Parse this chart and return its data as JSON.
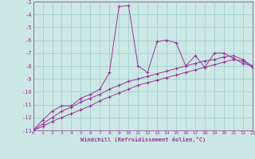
{
  "xlabel": "Windchill (Refroidissement éolien,°C)",
  "bg_color": "#cce8e4",
  "grid_color": "#99cccc",
  "line_color": "#993399",
  "xlim": [
    0,
    23
  ],
  "ylim": [
    -13,
    -3
  ],
  "xticks": [
    0,
    1,
    2,
    3,
    4,
    5,
    6,
    7,
    8,
    9,
    10,
    11,
    12,
    13,
    14,
    15,
    16,
    17,
    18,
    19,
    20,
    21,
    22,
    23
  ],
  "yticks": [
    -13,
    -12,
    -11,
    -10,
    -9,
    -8,
    -7,
    -6,
    -5,
    -4,
    -3
  ],
  "line1_x": [
    0,
    1,
    2,
    3,
    4,
    5,
    6,
    7,
    8,
    9,
    10,
    11,
    12,
    13,
    14,
    15,
    16,
    17,
    18,
    19,
    20,
    21,
    22,
    23
  ],
  "line1_y": [
    -13.0,
    -12.2,
    -11.5,
    -11.1,
    -11.1,
    -10.5,
    -10.2,
    -9.8,
    -8.5,
    -3.4,
    -3.3,
    -8.0,
    -8.5,
    -6.1,
    -6.0,
    -6.2,
    -8.0,
    -7.2,
    -8.1,
    -7.0,
    -7.0,
    -7.4,
    -7.8,
    -8.0
  ],
  "line2_x": [
    0,
    1,
    2,
    3,
    4,
    5,
    6,
    7,
    8,
    9,
    10,
    11,
    12,
    13,
    14,
    15,
    16,
    17,
    18,
    19,
    20,
    21,
    22,
    23
  ],
  "line2_y": [
    -13.0,
    -12.5,
    -12.0,
    -11.5,
    -11.2,
    -10.8,
    -10.5,
    -10.2,
    -9.8,
    -9.5,
    -9.2,
    -9.0,
    -8.8,
    -8.6,
    -8.4,
    -8.2,
    -8.0,
    -7.8,
    -7.6,
    -7.5,
    -7.3,
    -7.2,
    -7.5,
    -8.0
  ],
  "line3_x": [
    0,
    1,
    2,
    3,
    4,
    5,
    6,
    7,
    8,
    9,
    10,
    11,
    12,
    13,
    14,
    15,
    16,
    17,
    18,
    19,
    20,
    21,
    22,
    23
  ],
  "line3_y": [
    -13.0,
    -12.7,
    -12.3,
    -12.0,
    -11.7,
    -11.4,
    -11.1,
    -10.7,
    -10.4,
    -10.1,
    -9.8,
    -9.5,
    -9.3,
    -9.1,
    -8.9,
    -8.7,
    -8.5,
    -8.3,
    -8.1,
    -7.9,
    -7.7,
    -7.5,
    -7.6,
    -8.1
  ]
}
